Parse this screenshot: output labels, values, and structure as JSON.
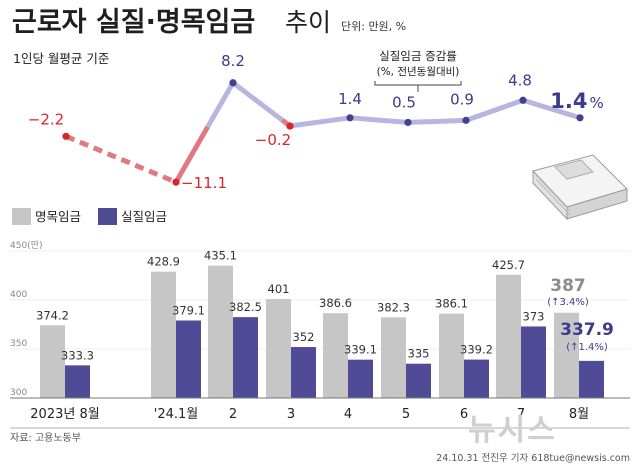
{
  "header": {
    "title_main": "근로자 실질·명목임금",
    "title_tail": "추이",
    "unit": "단위: 만원, %",
    "subtitle": "1인당 월평균 기준"
  },
  "annotation": {
    "line1": "실질임금 증감률",
    "line2": "(%, 전년동월대비)"
  },
  "legend": {
    "nominal": "명목임금",
    "real": "실질임금"
  },
  "source": "자료: 고용노동부",
  "credit": "24.10.31 전진우 기자 618tue@newsis.com",
  "watermark": "뉴시스",
  "colors": {
    "nominal": "#c6c6c6",
    "real": "#4f4b97",
    "rate_line": "#b7b6e0",
    "rate_negative": "#e07a82",
    "rate_point": "#43418c",
    "negative_text": "#d9262b",
    "positive_text": "#3c3a8c"
  },
  "chart_data": [
    {
      "type": "line",
      "title": "실질임금 증감률",
      "categories": [
        "2023년 8월",
        "'24.1월",
        "2",
        "3",
        "4",
        "5",
        "6",
        "7",
        "8월"
      ],
      "values": [
        -2.2,
        -11.1,
        8.2,
        -0.2,
        1.4,
        0.5,
        0.9,
        4.8,
        1.4
      ],
      "labels": [
        "−2.2",
        "−11.1",
        "8.2",
        "−0.2",
        "1.4",
        "0.5",
        "0.9",
        "4.8",
        "1.4"
      ],
      "last_label_unit": "%",
      "note": "2023년 8월 ~ '24.1월 구간은 점선"
    },
    {
      "type": "bar",
      "categories": [
        "2023년 8월",
        "'24.1월",
        "2",
        "3",
        "4",
        "5",
        "6",
        "7",
        "8월"
      ],
      "ylim": [
        300,
        450
      ],
      "yticks": [
        300,
        350,
        400,
        450
      ],
      "ytick_labels": [
        "300",
        "350",
        "400",
        "450(만)"
      ],
      "series": [
        {
          "name": "명목임금",
          "values": [
            374.2,
            428.9,
            435.1,
            401,
            386.6,
            382.3,
            386.1,
            425.7,
            387
          ],
          "labels": [
            "374.2",
            "428.9",
            "435.1",
            "401",
            "386.6",
            "382.3",
            "386.1",
            "425.7",
            "387"
          ]
        },
        {
          "name": "실질임금",
          "values": [
            333.3,
            379.1,
            382.5,
            352,
            339.1,
            335,
            339.2,
            373,
            337.9
          ],
          "labels": [
            "333.3",
            "379.1",
            "382.5",
            "352",
            "339.1",
            "335",
            "339.2",
            "373",
            "337.9"
          ]
        }
      ],
      "latest_changes": {
        "nominal": "(↑3.4%)",
        "real": "(↑1.4%)"
      }
    }
  ]
}
